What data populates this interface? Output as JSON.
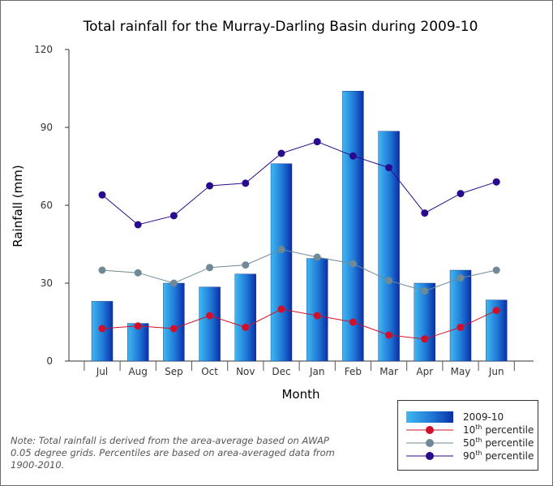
{
  "chart_data": {
    "type": "bar",
    "title": "Total rainfall for the Murray-Darling Basin during 2009-10",
    "xlabel": "Month",
    "ylabel": "Rainfall (mm)",
    "ylim": [
      0,
      120
    ],
    "yticks": [
      "0",
      "30",
      "60",
      "90",
      "120"
    ],
    "categories": [
      "Jul",
      "Aug",
      "Sep",
      "Oct",
      "Nov",
      "Dec",
      "Jan",
      "Feb",
      "Mar",
      "Apr",
      "May",
      "Jun"
    ],
    "legend_position": "bottom-right",
    "series": [
      {
        "name": "2009-10",
        "type": "bar",
        "color": "#1565c0",
        "values": [
          23,
          14.5,
          30,
          28.5,
          33.5,
          76,
          39.5,
          104,
          88.5,
          30,
          35,
          23.5
        ]
      },
      {
        "name": "10th percentile",
        "type": "line",
        "color": "#d0102a",
        "values": [
          12.5,
          13.5,
          12.5,
          17.5,
          13,
          20,
          17.5,
          15,
          10,
          8.5,
          13,
          19.5
        ]
      },
      {
        "name": "50th percentile",
        "type": "line",
        "color": "#6f8a96",
        "values": [
          35,
          34,
          30,
          36,
          37,
          43,
          40,
          37.5,
          31,
          27,
          32,
          35
        ]
      },
      {
        "name": "90th percentile",
        "type": "line",
        "color": "#2a0a8c",
        "values": [
          64,
          52.5,
          56,
          67.5,
          68.5,
          80,
          84.5,
          79,
          74.5,
          57,
          64.5,
          69
        ]
      }
    ]
  },
  "legend": {
    "bar_label": "2009-10",
    "p10_num": "10",
    "p10_sup": "th",
    "p10_text": " percentile",
    "p50_num": "50",
    "p50_sup": "th",
    "p50_text": " percentile",
    "p90_num": "90",
    "p90_sup": "th",
    "p90_text": " percentile"
  },
  "note": "Note: Total rainfall is derived from the area-average based on AWAP 0.05 degree grids. Percentiles are based on area-averaged data from 1900-2010."
}
